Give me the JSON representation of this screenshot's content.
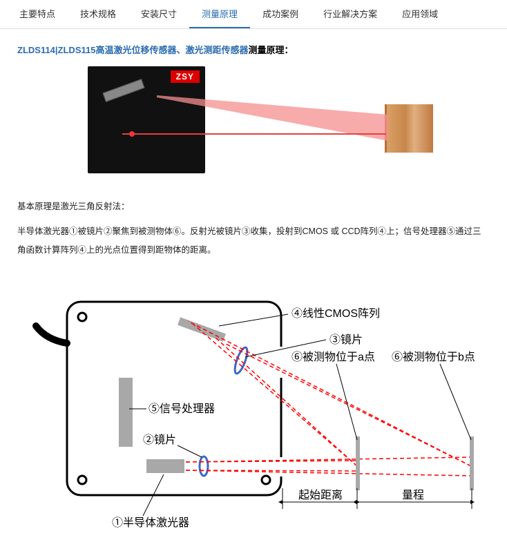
{
  "tabs": [
    {
      "label": "主要特点",
      "active": false
    },
    {
      "label": "技术规格",
      "active": false
    },
    {
      "label": "安装尺寸",
      "active": false
    },
    {
      "label": "测量原理",
      "active": true
    },
    {
      "label": "成功案例",
      "active": false
    },
    {
      "label": "行业解决方案",
      "active": false
    },
    {
      "label": "应用领域",
      "active": false
    }
  ],
  "heading": {
    "blue_part": "ZLDS114|ZLDS115高温激光位移传感器、激光测距传感器",
    "black_part": "测量原理："
  },
  "photo": {
    "logo": "ZSY",
    "beam_color": "#f58f8f",
    "line_color": "#e64040"
  },
  "paragraphs": [
    "基本原理是激光三角反射法：",
    "半导体激光器①被镜片②聚焦到被测物体⑥。反射光被镜片③收集，投射到CMOS 或 CCD阵列④上；信号处理器⑤通过三角函数计算阵列④上的光点位置得到距物体的距离。"
  ],
  "diagram": {
    "box_stroke": "#000000",
    "box_fill": "#ffffff",
    "ray_color": "#ff0000",
    "ray_dash": "6,4",
    "gray_fill": "#a8a8a8",
    "lens_stroke": "#3a68c8",
    "labels": {
      "cmos": "④线性CMOS阵列",
      "lens3": "③镜片",
      "obj_a": "⑥被测物位于a点",
      "obj_b": "⑥被测物位于b点",
      "proc": "⑤信号处理器",
      "lens2": "②镜片",
      "laser": "①半导体激光器",
      "start": "起始距离",
      "range": "量程"
    }
  }
}
